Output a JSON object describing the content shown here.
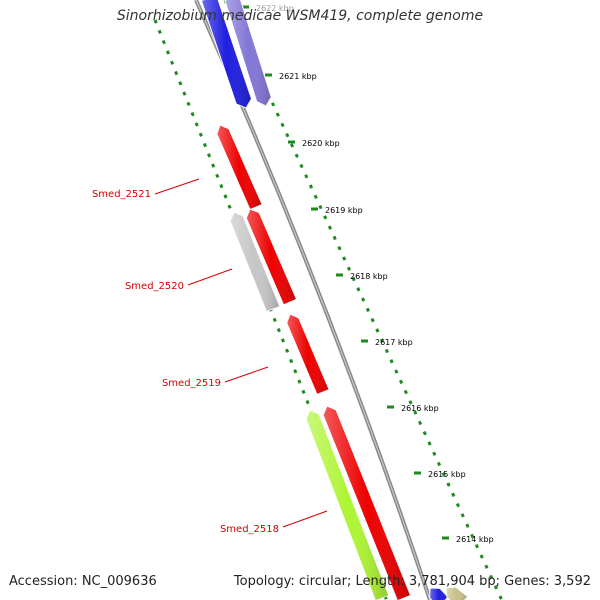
{
  "title": "Sinorhizobium medicae WSM419, complete genome",
  "footer": {
    "accession": "Accession: NC_009636",
    "summary": "Topology: circular; Length: 3,781,904 bp; Genes: 3,592"
  },
  "colors": {
    "backbone": "#8a8a8a",
    "tick": "#1f8a1f",
    "gene_label": "#d40000",
    "tick_label": "#000000"
  },
  "ruler_ticks": [
    {
      "label": "2622 kbp",
      "faded": true
    },
    {
      "label": "2621 kbp"
    },
    {
      "label": "2620 kbp"
    },
    {
      "label": "2619 kbp"
    },
    {
      "label": "2618 kbp"
    },
    {
      "label": "2617 kbp"
    },
    {
      "label": "2616 kbp"
    },
    {
      "label": "2615 kbp"
    },
    {
      "label": "2614 kbp"
    }
  ],
  "gene_labels": [
    "Smed_2521",
    "Smed_2520",
    "Smed_2519",
    "Smed_2518"
  ],
  "genes": [
    {
      "color": "#1f1fe0",
      "label": ""
    },
    {
      "color": "#8477d6",
      "label": ""
    },
    {
      "color": "#ee0000",
      "label": "Smed_2521"
    },
    {
      "color": "#c6c6c6",
      "label": "Smed_2520"
    },
    {
      "color": "#ee0000",
      "label": "Smed_2520"
    },
    {
      "color": "#ee0000",
      "label": "Smed_2519"
    },
    {
      "color": "#aef534",
      "label": "Smed_2518"
    },
    {
      "color": "#ee0000",
      "label": "Smed_2518"
    },
    {
      "color": "#1f1fe0",
      "label": ""
    },
    {
      "color": "#c8c08a",
      "label": ""
    }
  ]
}
